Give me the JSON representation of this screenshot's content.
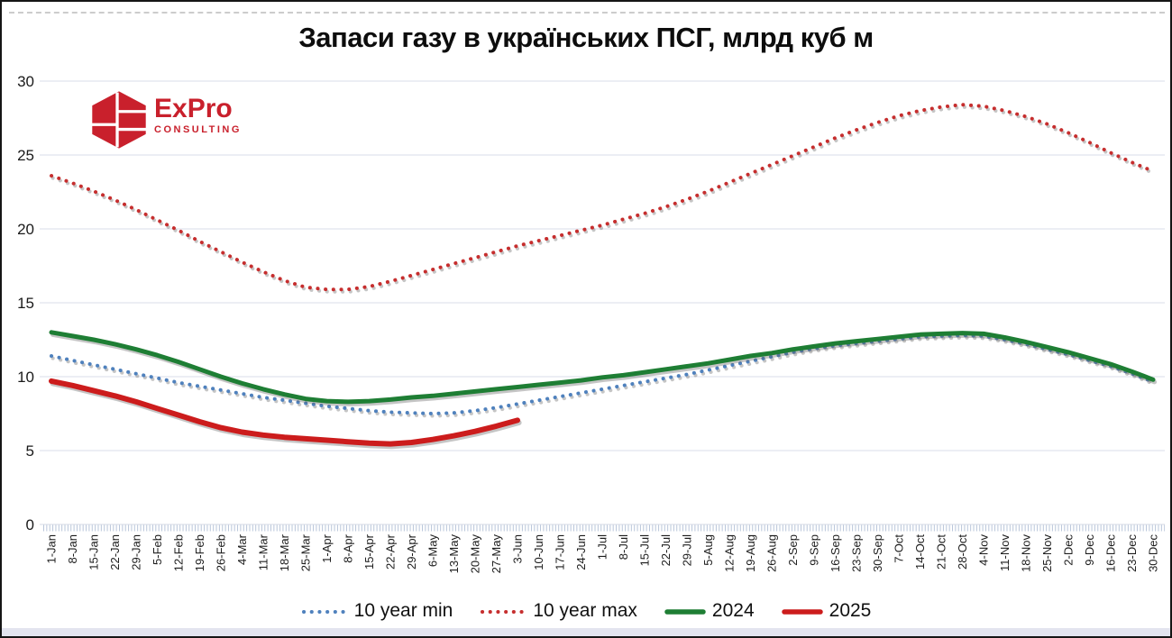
{
  "title": "Запаси газу в українських ПСГ, млрд куб м",
  "logo": {
    "name": "ExPro",
    "subtitle": "CONSULTING",
    "color": "#c9202c"
  },
  "colors": {
    "background": "#ffffff",
    "frame_border": "#151515",
    "gridline": "#e0e4ed",
    "tick_band": "#b9c6da",
    "axis_text": "#1a1a1a",
    "footer_strip": "#e3e4ef",
    "shadow": "rgba(90,90,90,0.35)"
  },
  "chart_data": {
    "type": "line",
    "title": "Запаси газу в українських ПСГ, млрд куб м",
    "xlabel": "",
    "ylabel": "",
    "ylim": [
      0,
      30
    ],
    "y_ticks": [
      0,
      5,
      10,
      15,
      20,
      25,
      30
    ],
    "grid": true,
    "legend_position": "bottom",
    "x_labels": [
      "1-Jan",
      "8-Jan",
      "15-Jan",
      "22-Jan",
      "29-Jan",
      "5-Feb",
      "12-Feb",
      "19-Feb",
      "26-Feb",
      "4-Mar",
      "11-Mar",
      "18-Mar",
      "25-Mar",
      "1-Apr",
      "8-Apr",
      "15-Apr",
      "22-Apr",
      "29-Apr",
      "6-May",
      "13-May",
      "20-May",
      "27-May",
      "3-Jun",
      "10-Jun",
      "17-Jun",
      "24-Jun",
      "1-Jul",
      "8-Jul",
      "15-Jul",
      "22-Jul",
      "29-Jul",
      "5-Aug",
      "12-Aug",
      "19-Aug",
      "26-Aug",
      "2-Sep",
      "9-Sep",
      "16-Sep",
      "23-Sep",
      "30-Sep",
      "7-Oct",
      "14-Oct",
      "21-Oct",
      "28-Oct",
      "4-Nov",
      "11-Nov",
      "18-Nov",
      "25-Nov",
      "2-Dec",
      "9-Dec",
      "16-Dec",
      "23-Dec",
      "30-Dec"
    ],
    "series": [
      {
        "name": "10 year min",
        "color": "#4f81bd",
        "dashed": true,
        "width": 4,
        "values": [
          11.4,
          11.1,
          10.8,
          10.5,
          10.2,
          9.9,
          9.6,
          9.35,
          9.1,
          8.85,
          8.6,
          8.4,
          8.2,
          8.0,
          7.85,
          7.7,
          7.6,
          7.55,
          7.5,
          7.55,
          7.7,
          7.9,
          8.15,
          8.4,
          8.65,
          8.9,
          9.15,
          9.4,
          9.65,
          9.9,
          10.15,
          10.45,
          10.75,
          11.05,
          11.35,
          11.65,
          11.9,
          12.1,
          12.25,
          12.4,
          12.55,
          12.7,
          12.75,
          12.8,
          12.75,
          12.5,
          12.2,
          11.85,
          11.5,
          11.1,
          10.7,
          10.2,
          9.65
        ]
      },
      {
        "name": "10 year max",
        "color": "#c62e2e",
        "dashed": true,
        "width": 4,
        "values": [
          23.6,
          23.1,
          22.55,
          21.95,
          21.3,
          20.6,
          19.9,
          19.15,
          18.45,
          17.75,
          17.1,
          16.5,
          16.05,
          15.9,
          15.9,
          16.1,
          16.45,
          16.85,
          17.25,
          17.65,
          18.05,
          18.45,
          18.85,
          19.2,
          19.55,
          19.9,
          20.25,
          20.65,
          21.05,
          21.5,
          22.0,
          22.55,
          23.15,
          23.75,
          24.35,
          24.95,
          25.55,
          26.15,
          26.7,
          27.2,
          27.65,
          28.0,
          28.25,
          28.4,
          28.3,
          28.0,
          27.6,
          27.1,
          26.5,
          25.85,
          25.15,
          24.5,
          23.9
        ]
      },
      {
        "name": "2024",
        "color": "#1e7e34",
        "dashed": false,
        "width": 5,
        "values": [
          13.0,
          12.75,
          12.5,
          12.2,
          11.85,
          11.45,
          11.0,
          10.5,
          10.0,
          9.55,
          9.15,
          8.8,
          8.5,
          8.35,
          8.3,
          8.35,
          8.45,
          8.6,
          8.7,
          8.85,
          9.0,
          9.15,
          9.3,
          9.45,
          9.6,
          9.75,
          9.95,
          10.1,
          10.3,
          10.5,
          10.7,
          10.9,
          11.15,
          11.4,
          11.6,
          11.85,
          12.05,
          12.25,
          12.4,
          12.55,
          12.7,
          12.85,
          12.9,
          12.95,
          12.9,
          12.65,
          12.35,
          12.0,
          11.65,
          11.25,
          10.85,
          10.35,
          9.8
        ]
      },
      {
        "name": "2025",
        "color": "#cc1c1c",
        "dashed": false,
        "width": 6,
        "values": [
          9.7,
          9.4,
          9.05,
          8.7,
          8.3,
          7.85,
          7.4,
          6.95,
          6.55,
          6.25,
          6.05,
          5.9,
          5.8,
          5.7,
          5.6,
          5.5,
          5.45,
          5.55,
          5.75,
          6.0,
          6.3,
          6.65,
          7.05
        ]
      }
    ]
  }
}
